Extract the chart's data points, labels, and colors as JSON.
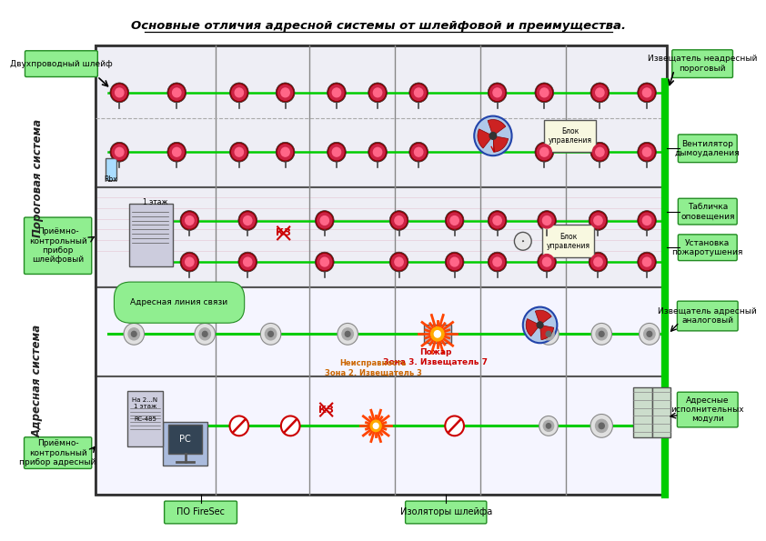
{
  "title": "Основные отличия адресной системы от шлейфовой и преимущества.",
  "bg_color": "#ffffff",
  "label_box_color": "#90ee90",
  "label_box_edge": "#228B22",
  "wall_color": "#555555",
  "green_line": "#00cc00",
  "pink_line": "#cc6688",
  "red_line": "#cc0000",
  "top_left": "Двухпроводный шлейф",
  "top_right": "Извещатель неадресный\nпороговый",
  "mid_right1": "Вентилятор\nдымоудаления",
  "mid_right2": "Табличка\nоповещения",
  "mid_right3": "Установка\nпожаротушения",
  "mid_right4": "Извещатель адресный\nаналоговый",
  "mid_right5": "Адресные\nисполнительных\nмодули",
  "left1": "Приёмно-\nконтрольный\nприбор\nшлейфовый",
  "left2": "Приёмно-\nконтрольный\nприбор адресный",
  "bottom1": "ПО FireSec",
  "bottom2": "Изоляторы шлейфа",
  "addr_line": "Адресная линия связи",
  "kz1": "КЗ",
  "kz2": "КЗ",
  "fire_text": "Пожар\nЗона 3. Извещатель 7",
  "fault_text": "Неисправность\nЗона 2. Извещатель 3",
  "side_porog": "Пороговая система",
  "side_addr": "Адресная система",
  "blok1": "Блок\nуправления",
  "blok2": "Блок\nуправления",
  "rbx": "Rbx",
  "floor1_label": "1 этаж",
  "rc485": "RC-485",
  "na2n": "На 2...N\n1 этаж"
}
